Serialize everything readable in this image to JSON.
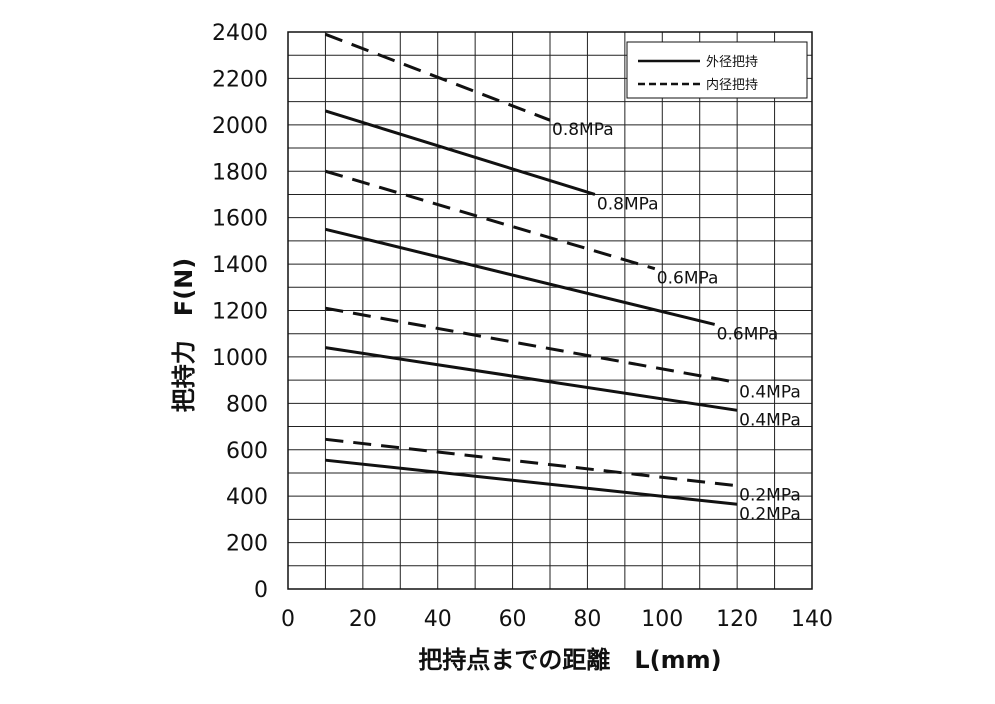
{
  "chart_data": {
    "type": "line",
    "xlabel": "把持点までの距離　L(mm)",
    "ylabel": "把持力　F(N)",
    "xlim": [
      0,
      140
    ],
    "ylim": [
      0,
      2400
    ],
    "xticks": [
      0,
      20,
      40,
      60,
      80,
      100,
      120,
      140
    ],
    "yticks": [
      0,
      200,
      400,
      600,
      800,
      1000,
      1200,
      1400,
      1600,
      1800,
      2000,
      2200,
      2400
    ],
    "grid": true,
    "legend": {
      "position": "top-right",
      "entries": [
        {
          "label": "外径把持",
          "style": "solid"
        },
        {
          "label": "内径把持",
          "style": "dashed"
        }
      ]
    },
    "series": [
      {
        "group": "外径把持",
        "style": "solid",
        "label": "0.8MPa",
        "x": [
          10,
          82
        ],
        "y": [
          2060,
          1700
        ]
      },
      {
        "group": "外径把持",
        "style": "solid",
        "label": "0.6MPa",
        "x": [
          10,
          114
        ],
        "y": [
          1550,
          1140
        ]
      },
      {
        "group": "外径把持",
        "style": "solid",
        "label": "0.4MPa",
        "x": [
          10,
          120
        ],
        "y": [
          1040,
          770
        ]
      },
      {
        "group": "外径把持",
        "style": "solid",
        "label": "0.2MPa",
        "x": [
          10,
          120
        ],
        "y": [
          555,
          365
        ]
      },
      {
        "group": "内径把持",
        "style": "dashed",
        "label": "0.8MPa",
        "x": [
          10,
          70
        ],
        "y": [
          2390,
          2020
        ]
      },
      {
        "group": "内径把持",
        "style": "dashed",
        "label": "0.6MPa",
        "x": [
          10,
          98
        ],
        "y": [
          1800,
          1380
        ]
      },
      {
        "group": "内径把持",
        "style": "dashed",
        "label": "0.4MPa",
        "x": [
          10,
          120
        ],
        "y": [
          1210,
          890
        ]
      },
      {
        "group": "内径把持",
        "style": "dashed",
        "label": "0.2MPa",
        "x": [
          10,
          120
        ],
        "y": [
          645,
          445
        ]
      }
    ]
  }
}
